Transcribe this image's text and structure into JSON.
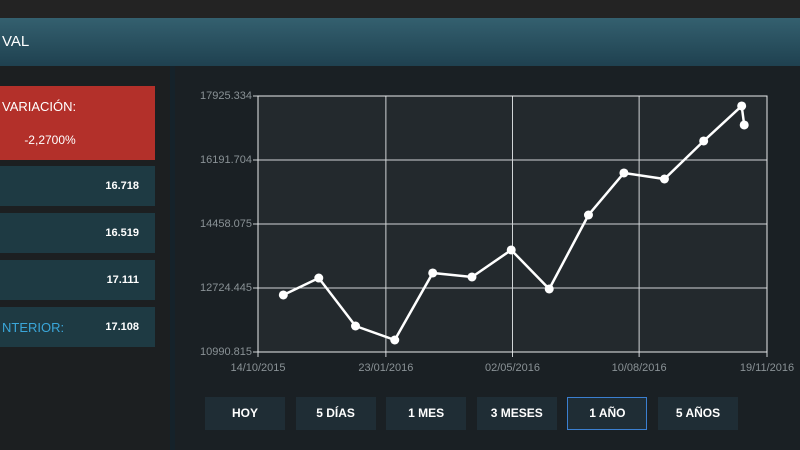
{
  "header": {
    "title": "VAL"
  },
  "variation": {
    "label": "VARIACIÓN:",
    "value": "-2,2700%"
  },
  "stats": [
    {
      "value": "16.718"
    },
    {
      "value": "16.519"
    },
    {
      "value": "17.111"
    },
    {
      "label": "NTERIOR:",
      "value": "17.108"
    }
  ],
  "buttons": [
    "HOY",
    "5 DÍAS",
    "1 MES",
    "3 MESES",
    "1 AÑO",
    "5 AÑOS"
  ],
  "active_button": 4,
  "chart_data": {
    "type": "line",
    "x": [
      "03/11/2015",
      "01/12/2015",
      "30/12/2015",
      "30/01/2016",
      "29/02/2016",
      "31/03/2016",
      "01/05/2016",
      "31/05/2016",
      "01/07/2016",
      "29/07/2016",
      "30/08/2016",
      "30/09/2016",
      "30/10/2016",
      "01/11/2016"
    ],
    "series": [
      {
        "color": "#ffffff",
        "values": [
          12535,
          12995,
          11695,
          11316,
          13131,
          13023,
          13754,
          12698,
          14702,
          15840,
          15677,
          16707,
          17655,
          17140
        ]
      }
    ],
    "xlim": [
      "14/10/2015",
      "19/11/2016"
    ],
    "xticks": [
      "14/10/2015",
      "23/01/2016",
      "02/05/2016",
      "10/08/2016",
      "19/11/2016"
    ],
    "ylim": [
      10990.815,
      17925.334
    ],
    "yticks": [
      10990.815,
      12724.445,
      14458.075,
      16191.704,
      17925.334
    ],
    "grid": true
  }
}
